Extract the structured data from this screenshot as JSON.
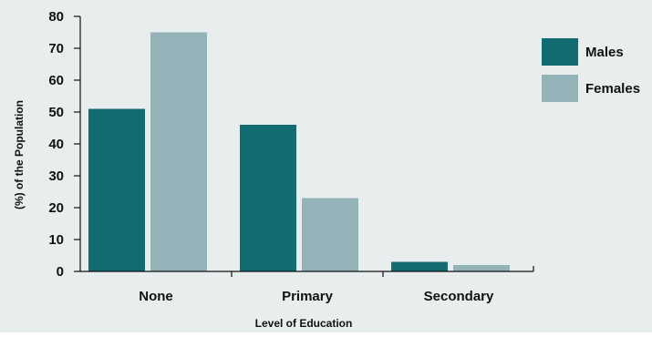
{
  "colors": {
    "background": "#e8edee",
    "males": "#136b73",
    "females": "#93b3b8",
    "axis": "#111111"
  },
  "chart_data": {
    "type": "bar",
    "title": "",
    "xlabel": "Level of Education",
    "ylabel": "(%) of the Population",
    "categories": [
      "None",
      "Primary",
      "Secondary"
    ],
    "series": [
      {
        "name": "Males",
        "color": "#136b73",
        "values": [
          51,
          46,
          3
        ]
      },
      {
        "name": "Females",
        "color": "#93b3b8",
        "values": [
          75,
          23,
          2
        ]
      }
    ],
    "ylim": [
      0,
      80
    ],
    "yticks": [
      0,
      10,
      20,
      30,
      40,
      50,
      60,
      70,
      80
    ],
    "grid": false,
    "legend_position": "right"
  }
}
